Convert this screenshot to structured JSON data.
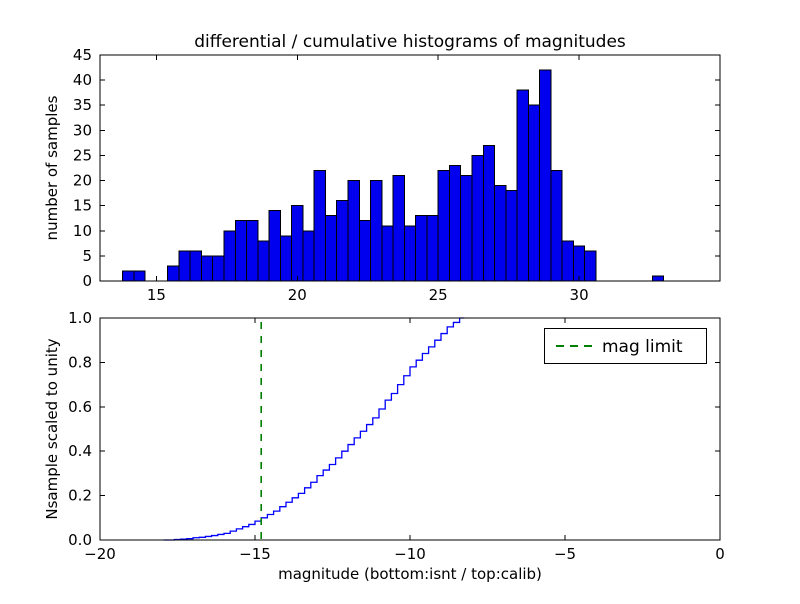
{
  "figure": {
    "background": "#ffffff"
  },
  "chart_data": [
    {
      "type": "bar",
      "title": "differential / cumulative histograms of magnitudes",
      "xlabel": "",
      "ylabel": "number of samples",
      "xlim": [
        13,
        35
      ],
      "ylim": [
        0,
        45
      ],
      "xticks": [
        15,
        20,
        25,
        30
      ],
      "xtick_labels": [
        "15",
        "20",
        "25",
        "30"
      ],
      "yticks": [
        0,
        5,
        10,
        15,
        20,
        25,
        30,
        35,
        40,
        45
      ],
      "ytick_labels": [
        "0",
        "5",
        "10",
        "15",
        "20",
        "25",
        "30",
        "35",
        "40",
        "45"
      ],
      "grid": false,
      "bin_start": 13.8,
      "bin_width": 0.4,
      "counts": [
        2,
        2,
        0,
        0,
        3,
        6,
        6,
        5,
        5,
        10,
        12,
        12,
        8,
        14,
        9,
        15,
        10,
        22,
        13,
        16,
        20,
        12,
        20,
        11,
        21,
        11,
        13,
        13,
        22,
        23,
        21,
        25,
        27,
        19,
        18,
        38,
        35,
        42,
        22,
        8,
        7,
        6,
        0,
        0,
        0,
        0,
        0,
        1
      ],
      "bar_fill": "#0000ee",
      "bar_edge": "#000000"
    },
    {
      "type": "line",
      "line_style": "step-cumulative",
      "title": "",
      "xlabel": "magnitude (bottom:isnt / top:calib)",
      "ylabel": "Nsample scaled to unity",
      "xlim": [
        -20,
        0
      ],
      "ylim": [
        0,
        1.0
      ],
      "xticks": [
        -20,
        -15,
        -10,
        -5,
        0
      ],
      "xtick_labels": [
        "−20",
        "−15",
        "−10",
        "−5",
        "0"
      ],
      "yticks": [
        0,
        0.2,
        0.4,
        0.6,
        0.8,
        1.0
      ],
      "ytick_labels": [
        "0.0",
        "0.2",
        "0.4",
        "0.6",
        "0.8",
        "1.0"
      ],
      "grid": false,
      "line_color": "#0000ff",
      "points": [
        [
          -17.6,
          0.002
        ],
        [
          -17.4,
          0.004
        ],
        [
          -17.2,
          0.006
        ],
        [
          -17.0,
          0.01
        ],
        [
          -16.8,
          0.012
        ],
        [
          -16.6,
          0.016
        ],
        [
          -16.4,
          0.02
        ],
        [
          -16.2,
          0.025
        ],
        [
          -16.0,
          0.03
        ],
        [
          -15.8,
          0.04
        ],
        [
          -15.6,
          0.05
        ],
        [
          -15.4,
          0.06
        ],
        [
          -15.2,
          0.07
        ],
        [
          -15.0,
          0.085
        ],
        [
          -14.8,
          0.1
        ],
        [
          -14.6,
          0.115
        ],
        [
          -14.4,
          0.13
        ],
        [
          -14.2,
          0.15
        ],
        [
          -14.0,
          0.17
        ],
        [
          -13.8,
          0.19
        ],
        [
          -13.6,
          0.21
        ],
        [
          -13.4,
          0.235
        ],
        [
          -13.2,
          0.26
        ],
        [
          -13.0,
          0.29
        ],
        [
          -12.8,
          0.315
        ],
        [
          -12.6,
          0.34
        ],
        [
          -12.4,
          0.37
        ],
        [
          -12.2,
          0.4
        ],
        [
          -12.0,
          0.43
        ],
        [
          -11.8,
          0.46
        ],
        [
          -11.6,
          0.49
        ],
        [
          -11.4,
          0.52
        ],
        [
          -11.2,
          0.55
        ],
        [
          -11.0,
          0.59
        ],
        [
          -10.8,
          0.63
        ],
        [
          -10.6,
          0.66
        ],
        [
          -10.4,
          0.7
        ],
        [
          -10.2,
          0.74
        ],
        [
          -10.0,
          0.78
        ],
        [
          -9.8,
          0.81
        ],
        [
          -9.6,
          0.84
        ],
        [
          -9.4,
          0.87
        ],
        [
          -9.2,
          0.9
        ],
        [
          -9.0,
          0.93
        ],
        [
          -8.8,
          0.96
        ],
        [
          -8.6,
          0.98
        ],
        [
          -8.4,
          1.0
        ]
      ],
      "vline": {
        "x": -14.8,
        "color": "#008000",
        "style": "dashed"
      },
      "legend_label": "mag limit",
      "legend_position": "upper right"
    }
  ]
}
